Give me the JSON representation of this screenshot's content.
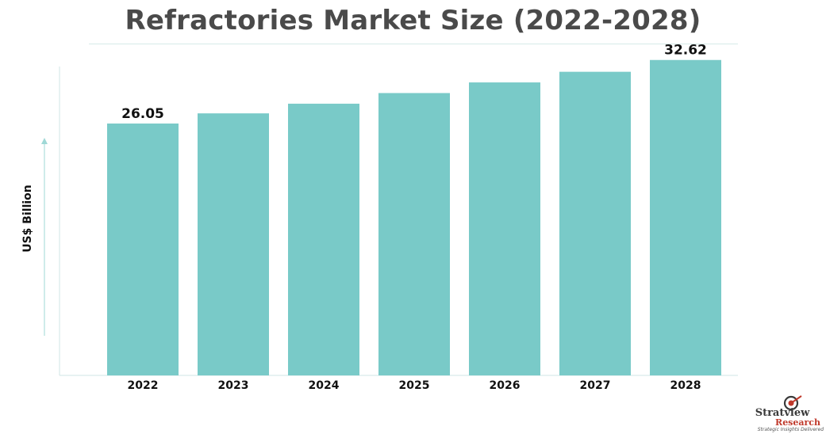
{
  "chart_data": {
    "type": "bar",
    "title": "Refractories Market Size (2022-2028)",
    "ylabel": "US$ Billion",
    "xlabel": "",
    "categories": [
      "2022",
      "2023",
      "2024",
      "2025",
      "2026",
      "2027",
      "2028"
    ],
    "values": [
      26.05,
      27.1,
      28.1,
      29.2,
      30.3,
      31.4,
      32.62
    ],
    "data_labels": [
      "26.05",
      "",
      "",
      "",
      "",
      "",
      "32.62"
    ],
    "ylim": [
      0,
      33.5
    ],
    "grid": false,
    "legend": "none",
    "bar_color": "#79cac8"
  },
  "logo": {
    "brand": "Stratview",
    "brand_sub": "Research",
    "tagline": "Strategic Insights Delivered"
  }
}
